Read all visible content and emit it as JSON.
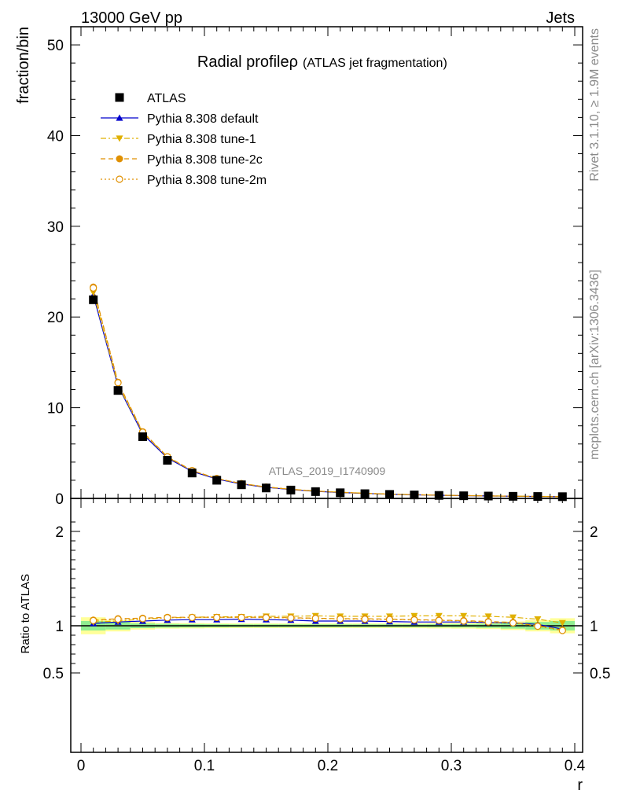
{
  "header": {
    "process": "13000 GeV pp",
    "category": "Jets"
  },
  "side_labels": {
    "rivet": "Rivet 3.1.10, ≥ 1.9M events",
    "source": "mcplots.cern.ch [arXiv:1306.3436]"
  },
  "watermark": "ATLAS_2019_I1740909",
  "chart_data": [
    {
      "type": "line",
      "panel": "main",
      "title": "Radial profileρ",
      "subtitle": "(ATLAS jet fragmentation)",
      "xlabel": "r",
      "ylabel": "fraction/bin",
      "xlim": [
        0,
        0.4
      ],
      "ylim": [
        0,
        52
      ],
      "y_ticks": [
        "0",
        "10",
        "20",
        "30",
        "40",
        "50"
      ],
      "x": [
        0.01,
        0.03,
        0.05,
        0.07,
        0.09,
        0.11,
        0.13,
        0.15,
        0.17,
        0.19,
        0.21,
        0.23,
        0.25,
        0.27,
        0.29,
        0.31,
        0.33,
        0.35,
        0.37,
        0.39
      ],
      "legend_position": "top-left",
      "series": [
        {
          "name": "ATLAS",
          "color": "#000000",
          "marker": "square",
          "values": [
            21.9,
            11.9,
            6.8,
            4.2,
            2.8,
            2.0,
            1.5,
            1.15,
            0.92,
            0.75,
            0.62,
            0.52,
            0.44,
            0.38,
            0.33,
            0.29,
            0.26,
            0.23,
            0.21,
            0.19
          ]
        },
        {
          "name": "Pythia 8.308 default",
          "color": "#0000cc",
          "marker": "triangle-up",
          "line": "solid",
          "values": [
            22.4,
            12.4,
            7.1,
            4.45,
            2.98,
            2.13,
            1.59,
            1.22,
            0.97,
            0.78,
            0.65,
            0.545,
            0.46,
            0.395,
            0.344,
            0.302,
            0.27,
            0.237,
            0.213,
            0.183
          ]
        },
        {
          "name": "Pythia 8.308 tune-1",
          "color": "#e0b000",
          "marker": "triangle-down",
          "line": "dashdot",
          "values": [
            22.7,
            12.5,
            7.25,
            4.55,
            3.05,
            2.18,
            1.63,
            1.26,
            1.01,
            0.82,
            0.68,
            0.575,
            0.485,
            0.42,
            0.366,
            0.322,
            0.285,
            0.255,
            0.225,
            0.195
          ]
        },
        {
          "name": "Pythia 8.308 tune-2c",
          "color": "#e09000",
          "marker": "circle",
          "line": "dashed",
          "values": [
            23.3,
            12.8,
            7.35,
            4.6,
            3.08,
            2.2,
            1.64,
            1.26,
            1.0,
            0.81,
            0.67,
            0.56,
            0.47,
            0.405,
            0.352,
            0.31,
            0.272,
            0.238,
            0.21,
            0.181
          ]
        },
        {
          "name": "Pythia 8.308 tune-2m",
          "color": "#e09000",
          "marker": "circle-open",
          "line": "dotted",
          "values": [
            23.2,
            12.75,
            7.3,
            4.58,
            3.06,
            2.19,
            1.63,
            1.25,
            0.995,
            0.805,
            0.665,
            0.556,
            0.467,
            0.402,
            0.349,
            0.308,
            0.27,
            0.236,
            0.209,
            0.18
          ]
        }
      ]
    },
    {
      "type": "line",
      "panel": "ratio",
      "ylabel": "Ratio to ATLAS",
      "xlabel": "r",
      "xlim": [
        0,
        0.4
      ],
      "ylim": [
        0.4,
        2.3
      ],
      "x_ticks": [
        "0",
        "0.1",
        "0.2",
        "0.3",
        "0.4"
      ],
      "y_ticks": [
        "0.5",
        "1",
        "2"
      ],
      "x": [
        0.01,
        0.03,
        0.05,
        0.07,
        0.09,
        0.11,
        0.13,
        0.15,
        0.17,
        0.19,
        0.21,
        0.23,
        0.25,
        0.27,
        0.29,
        0.31,
        0.33,
        0.35,
        0.37,
        0.39
      ],
      "band_inner": [
        0.05,
        0.04,
        0.025,
        0.02,
        0.018,
        0.016,
        0.015,
        0.015,
        0.015,
        0.015,
        0.015,
        0.015,
        0.015,
        0.015,
        0.016,
        0.018,
        0.022,
        0.03,
        0.04,
        0.05
      ],
      "band_outer": [
        0.09,
        0.06,
        0.04,
        0.03,
        0.028,
        0.026,
        0.025,
        0.025,
        0.025,
        0.025,
        0.025,
        0.025,
        0.025,
        0.026,
        0.028,
        0.03,
        0.035,
        0.045,
        0.06,
        0.08
      ],
      "series": [
        {
          "name": "Pythia 8.308 default",
          "color": "#0000cc",
          "marker": "triangle-up",
          "line": "solid",
          "values": [
            1.025,
            1.04,
            1.05,
            1.06,
            1.065,
            1.065,
            1.07,
            1.065,
            1.06,
            1.05,
            1.05,
            1.05,
            1.045,
            1.04,
            1.04,
            1.04,
            1.035,
            1.03,
            1.015,
            0.965
          ]
        },
        {
          "name": "Pythia 8.308 tune-1",
          "color": "#e0b000",
          "marker": "triangle-down",
          "line": "dashdot",
          "values": [
            1.04,
            1.05,
            1.07,
            1.085,
            1.09,
            1.095,
            1.095,
            1.1,
            1.1,
            1.105,
            1.1,
            1.1,
            1.1,
            1.105,
            1.105,
            1.105,
            1.1,
            1.09,
            1.07,
            1.03
          ]
        },
        {
          "name": "Pythia 8.308 tune-2c",
          "color": "#e09000",
          "marker": "circle",
          "line": "dashed",
          "values": [
            1.06,
            1.075,
            1.08,
            1.09,
            1.09,
            1.09,
            1.09,
            1.09,
            1.085,
            1.08,
            1.075,
            1.075,
            1.07,
            1.065,
            1.06,
            1.055,
            1.045,
            1.035,
            1.0,
            0.955
          ]
        },
        {
          "name": "Pythia 8.308 tune-2m",
          "color": "#e09000",
          "marker": "circle-open",
          "line": "dotted",
          "values": [
            1.055,
            1.07,
            1.075,
            1.085,
            1.088,
            1.088,
            1.088,
            1.086,
            1.083,
            1.078,
            1.072,
            1.07,
            1.066,
            1.062,
            1.057,
            1.05,
            1.04,
            1.03,
            0.995,
            0.95
          ]
        }
      ]
    }
  ]
}
